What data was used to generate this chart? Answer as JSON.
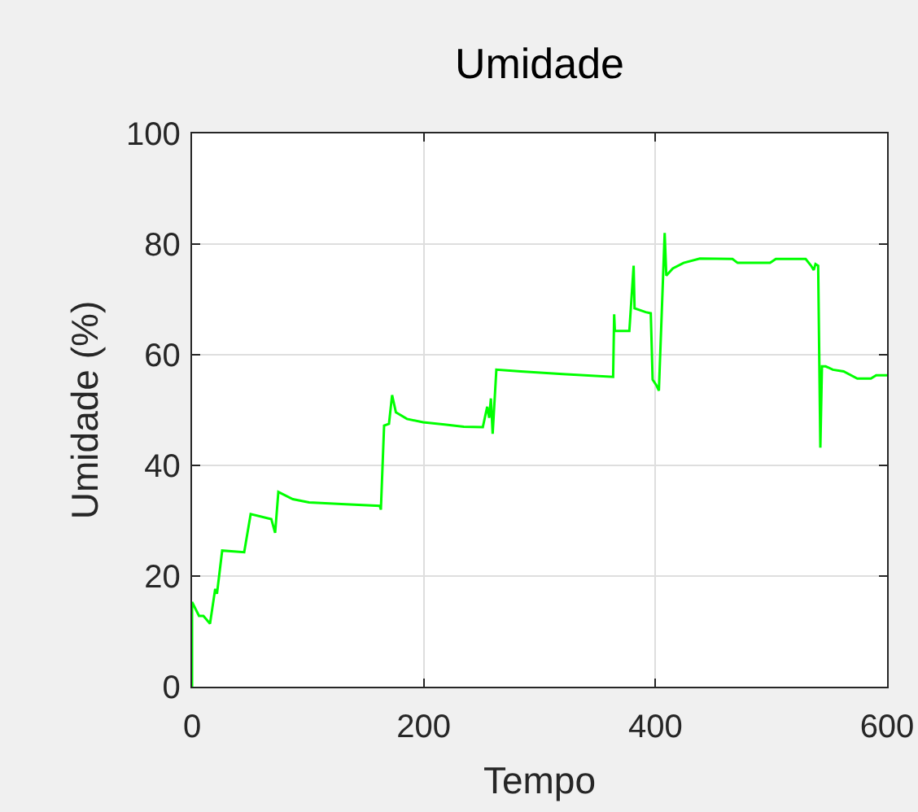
{
  "chart_data": {
    "type": "line",
    "title": "Umidade",
    "xlabel": "Tempo",
    "ylabel": "Umidade (%)",
    "x": [
      0,
      0,
      6,
      9.8,
      15.5,
      20,
      21.5,
      26,
      45,
      50.6,
      68.4,
      71.7,
      74.5,
      87,
      101,
      129,
      162,
      163,
      165.8,
      170,
      172.7,
      176,
      185.5,
      199.5,
      218,
      234.6,
      251,
      254.8,
      256.5,
      258,
      259.5,
      262.7,
      283.8,
      320,
      363.5,
      364.4,
      365,
      377.5,
      381.2,
      382,
      391.6,
      396,
      397.6,
      400.8,
      403,
      408,
      409.4,
      415,
      424.3,
      438.4,
      466.5,
      471,
      499,
      504,
      529.7,
      534.4,
      536.7,
      538.2,
      540.5,
      542.4,
      543.8,
      547,
      553.2,
      562.5,
      574.3,
      586,
      590.6,
      600
    ],
    "series": [
      {
        "color": "#00ff00",
        "values": [
          0,
          15.3,
          12.8,
          12.8,
          11.4,
          17.7,
          16.8,
          24.6,
          24.3,
          31.2,
          30.3,
          27.8,
          35.2,
          33.9,
          33.3,
          33.0,
          32.7,
          32.0,
          47.2,
          47.5,
          52.7,
          49.6,
          48.4,
          47.8,
          47.4,
          47.0,
          46.9,
          50.6,
          48.6,
          52.1,
          45.7,
          57.3,
          57.0,
          56.5,
          56.0,
          67.3,
          64.3,
          64.3,
          76.1,
          68.4,
          67.7,
          67.5,
          55.5,
          54.5,
          53.5,
          82.0,
          74.3,
          75.6,
          76.6,
          77.4,
          77.3,
          76.6,
          76.6,
          77.3,
          77.3,
          76.1,
          75.3,
          76.4,
          76.1,
          43.2,
          57.9,
          57.9,
          57.3,
          57.0,
          55.7,
          55.7,
          56.3,
          56.3
        ]
      }
    ],
    "xlim": [
      0,
      600
    ],
    "xticks": [
      0,
      200,
      400,
      600
    ],
    "ylim": [
      0,
      100
    ],
    "yticks": [
      0,
      20,
      40,
      60,
      80,
      100
    ],
    "grid": true
  }
}
